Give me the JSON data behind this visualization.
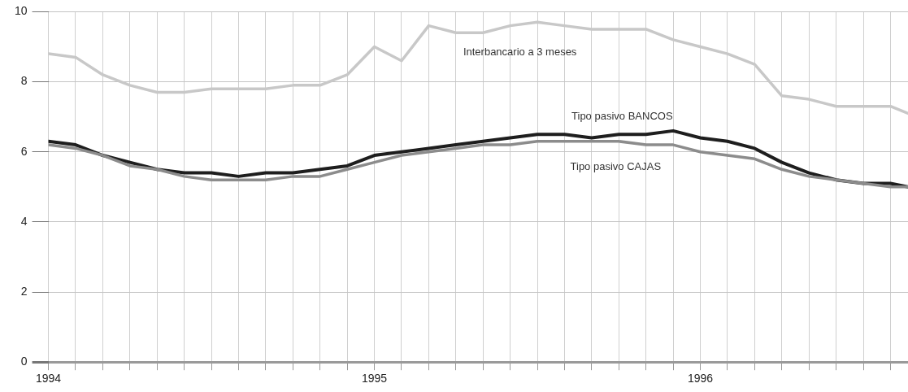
{
  "chart_data": {
    "type": "line",
    "x": [
      "1994-01",
      "1994-02",
      "1994-03",
      "1994-04",
      "1994-05",
      "1994-06",
      "1994-07",
      "1994-08",
      "1994-09",
      "1994-10",
      "1994-11",
      "1994-12",
      "1995-01",
      "1995-02",
      "1995-03",
      "1995-04",
      "1995-05",
      "1995-06",
      "1995-07",
      "1995-08",
      "1995-09",
      "1995-10",
      "1995-11",
      "1995-12",
      "1996-01",
      "1996-02",
      "1996-03",
      "1996-04",
      "1996-05",
      "1996-06",
      "1996-07",
      "1996-08",
      "1996-08-21"
    ],
    "series": [
      {
        "name": "Interbancario a 3 meses",
        "color": "#c8c8c8",
        "values": [
          8.8,
          8.7,
          8.2,
          7.9,
          7.7,
          7.7,
          7.8,
          7.8,
          7.8,
          7.9,
          7.9,
          8.2,
          9.0,
          8.6,
          9.6,
          9.4,
          9.4,
          9.6,
          9.7,
          9.6,
          9.5,
          9.5,
          9.5,
          9.2,
          9.0,
          8.8,
          8.5,
          7.6,
          7.5,
          7.3,
          7.3,
          7.3,
          7.1
        ]
      },
      {
        "name": "Tipo pasivo BANCOS",
        "color": "#1e1e1e",
        "values": [
          6.3,
          6.2,
          5.9,
          5.7,
          5.5,
          5.4,
          5.4,
          5.3,
          5.4,
          5.4,
          5.5,
          5.6,
          5.9,
          6.0,
          6.1,
          6.2,
          6.3,
          6.4,
          6.5,
          6.5,
          6.4,
          6.5,
          6.5,
          6.6,
          6.4,
          6.3,
          6.1,
          5.7,
          5.4,
          5.2,
          5.1,
          5.1,
          5.0
        ]
      },
      {
        "name": "Tipo pasivo CAJAS",
        "color": "#8c8c8c",
        "values": [
          6.2,
          6.1,
          5.9,
          5.6,
          5.5,
          5.3,
          5.2,
          5.2,
          5.2,
          5.3,
          5.3,
          5.5,
          5.7,
          5.9,
          6.0,
          6.1,
          6.2,
          6.2,
          6.3,
          6.3,
          6.3,
          6.3,
          6.2,
          6.2,
          6.0,
          5.9,
          5.8,
          5.5,
          5.3,
          5.2,
          5.1,
          5.0,
          5.0
        ]
      }
    ],
    "xlim": [
      "1994-01",
      "1996-08-21"
    ],
    "xticks": [
      {
        "value": "1994-01",
        "label": "1994"
      },
      {
        "value": "1994-02",
        "label": null
      },
      {
        "value": "1994-03",
        "label": null
      },
      {
        "value": "1994-04",
        "label": null
      },
      {
        "value": "1994-05",
        "label": null
      },
      {
        "value": "1994-06",
        "label": null
      },
      {
        "value": "1994-07",
        "label": null
      },
      {
        "value": "1994-08",
        "label": null
      },
      {
        "value": "1994-09",
        "label": null
      },
      {
        "value": "1994-10",
        "label": null
      },
      {
        "value": "1994-11",
        "label": null
      },
      {
        "value": "1994-12",
        "label": null
      },
      {
        "value": "1995-01",
        "label": "1995"
      },
      {
        "value": "1995-02",
        "label": null
      },
      {
        "value": "1995-03",
        "label": null
      },
      {
        "value": "1995-04",
        "label": null
      },
      {
        "value": "1995-05",
        "label": null
      },
      {
        "value": "1995-06",
        "label": null
      },
      {
        "value": "1995-07",
        "label": null
      },
      {
        "value": "1995-08",
        "label": null
      },
      {
        "value": "1995-09",
        "label": null
      },
      {
        "value": "1995-10",
        "label": null
      },
      {
        "value": "1995-11",
        "label": null
      },
      {
        "value": "1995-12",
        "label": null
      },
      {
        "value": "1996-01",
        "label": "1996"
      },
      {
        "value": "1996-02",
        "label": null
      },
      {
        "value": "1996-03",
        "label": null
      },
      {
        "value": "1996-04",
        "label": null
      },
      {
        "value": "1996-05",
        "label": null
      },
      {
        "value": "1996-06",
        "label": null
      },
      {
        "value": "1996-07",
        "label": null
      },
      {
        "value": "1996-08",
        "label": null
      }
    ],
    "ylim": [
      0,
      10
    ],
    "yticks": [
      0,
      2,
      4,
      6,
      8,
      10
    ],
    "grid": true,
    "legend": false,
    "marker": "none",
    "line_style": "solid"
  }
}
